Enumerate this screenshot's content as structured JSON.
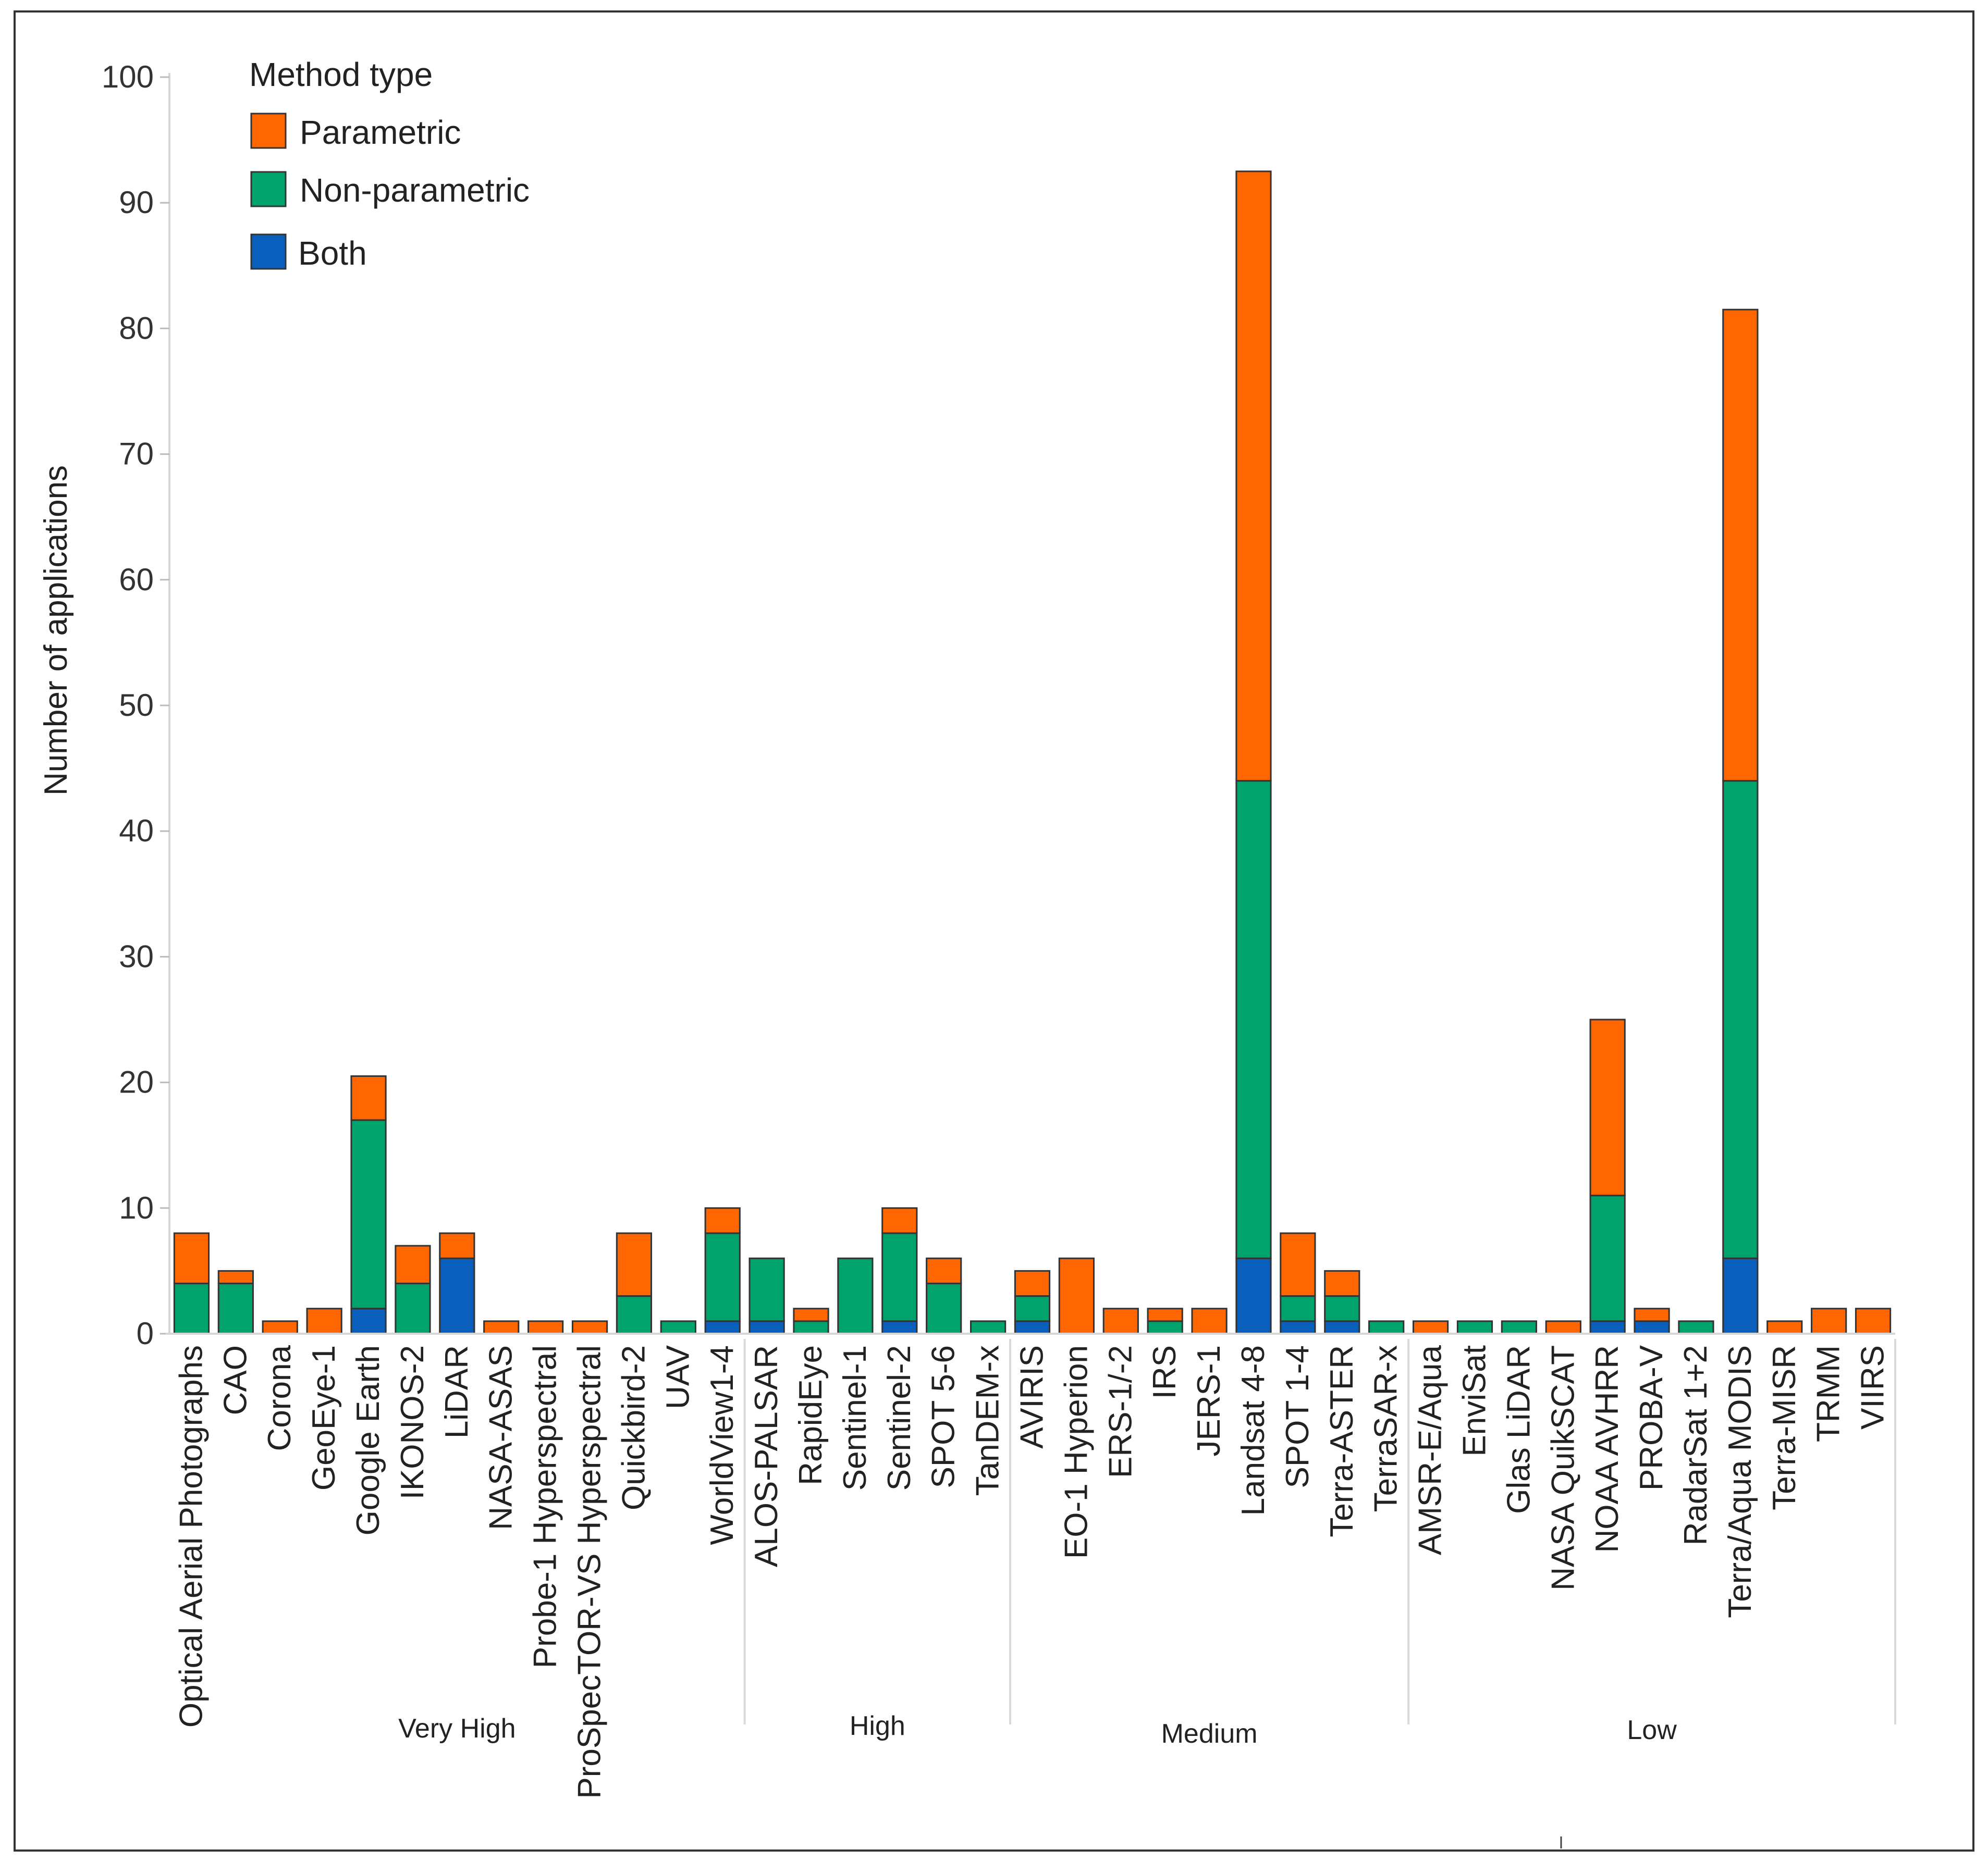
{
  "chart_data": {
    "type": "bar",
    "stacked": true,
    "title": "",
    "xlabel": "",
    "ylabel": "Number of applications",
    "ylim": [
      0,
      100
    ],
    "yticks": [
      0,
      10,
      20,
      30,
      40,
      50,
      60,
      70,
      80,
      90,
      100
    ],
    "legend": {
      "title": "Method type",
      "position": "top-left",
      "items": [
        {
          "name": "Parametric",
          "color": "#ff6600"
        },
        {
          "name": "Non-parametric",
          "color": "#00a36c"
        },
        {
          "name": "Both",
          "color": "#0a5fbd"
        }
      ]
    },
    "categories": [
      "Optical Aerial Photographs",
      "CAO",
      "Corona",
      "GeoEye-1",
      "Google Earth",
      "IKONOS-2",
      "LiDAR",
      "NASA-ASAS",
      "Probe-1 Hyperspectral",
      "ProSpecTOR-VS Hyperspectral",
      "Quickbird-2",
      "UAV",
      "WorldView1-4",
      "ALOS-PALSAR",
      "RapidEye",
      "Sentinel-1",
      "Sentinel-2",
      "SPOT 5-6",
      "TanDEM-x",
      "AVIRIS",
      "EO-1 Hyperion",
      "ERS-1/-2",
      "IRS",
      "JERS-1",
      "Landsat 4-8",
      "SPOT 1-4",
      "Terra-ASTER",
      "TerraSAR-x",
      "AMSR-E/Aqua",
      "EnviSat",
      "Glas LiDAR",
      "NASA QuikSCAT",
      "NOAA AVHRR",
      "PROBA-V",
      "RadarSat 1+2",
      "Terra/Aqua MODIS",
      "Terra-MISR",
      "TRMM",
      "VIIRS"
    ],
    "groups": [
      {
        "name": "Very High",
        "count": 13
      },
      {
        "name": "High",
        "count": 6
      },
      {
        "name": "Medium",
        "count": 9
      },
      {
        "name": "Low",
        "count": 11
      }
    ],
    "series": [
      {
        "name": "Both",
        "color": "#0a5fbd",
        "values": [
          0,
          0,
          0,
          0,
          2,
          0,
          6,
          0,
          0,
          0,
          0,
          0,
          1,
          1,
          0,
          0,
          1,
          0,
          0,
          1,
          0,
          0,
          0,
          0,
          6,
          1,
          1,
          0,
          0,
          0,
          0,
          0,
          1,
          1,
          0,
          6,
          0,
          0,
          0
        ]
      },
      {
        "name": "Non-parametric",
        "color": "#00a36c",
        "values": [
          4,
          4,
          0,
          0,
          15,
          4,
          0,
          0,
          0,
          0,
          3,
          1,
          7,
          5,
          1,
          6,
          7,
          4,
          1,
          2,
          0,
          0,
          1,
          0,
          38,
          2,
          2,
          1,
          0,
          1,
          1,
          0,
          10,
          0,
          1,
          38,
          0,
          0,
          0
        ]
      },
      {
        "name": "Parametric",
        "color": "#ff6600",
        "values": [
          4,
          1,
          1,
          2,
          3.5,
          3,
          2,
          1,
          1,
          1,
          5,
          0,
          2,
          0,
          1,
          0,
          2,
          2,
          0,
          2,
          6,
          2,
          1,
          2,
          48.5,
          5,
          2,
          0,
          1,
          0,
          0,
          1,
          14,
          1,
          0,
          37.5,
          1,
          2,
          2
        ]
      }
    ]
  }
}
